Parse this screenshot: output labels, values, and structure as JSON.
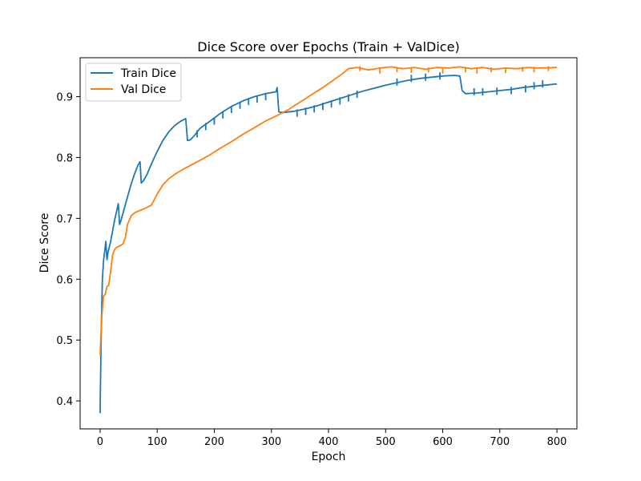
{
  "chart_data": {
    "type": "line",
    "title": "Dice Score over Epochs (Train + ValDice)",
    "xlabel": "Epoch",
    "ylabel": "Dice Score",
    "xlim": [
      -35,
      835
    ],
    "ylim": [
      0.354,
      0.964
    ],
    "xticks": [
      0,
      100,
      200,
      300,
      400,
      500,
      600,
      700,
      800
    ],
    "yticks": [
      0.4,
      0.5,
      0.6,
      0.7,
      0.8,
      0.9
    ],
    "ytick_labels": [
      "0.4",
      "0.5",
      "0.6",
      "0.7",
      "0.8",
      "0.9"
    ],
    "grid": false,
    "legend_position": "top-left",
    "series": [
      {
        "name": "Train Dice",
        "color": "#1f77b4",
        "points": [
          [
            0,
            0.38
          ],
          [
            2,
            0.52
          ],
          [
            4,
            0.6
          ],
          [
            6,
            0.63
          ],
          [
            8,
            0.645
          ],
          [
            10,
            0.662
          ],
          [
            12,
            0.632
          ],
          [
            14,
            0.645
          ],
          [
            18,
            0.66
          ],
          [
            22,
            0.68
          ],
          [
            26,
            0.7
          ],
          [
            30,
            0.716
          ],
          [
            32,
            0.724
          ],
          [
            34,
            0.69
          ],
          [
            36,
            0.695
          ],
          [
            42,
            0.715
          ],
          [
            48,
            0.735
          ],
          [
            54,
            0.755
          ],
          [
            60,
            0.772
          ],
          [
            66,
            0.787
          ],
          [
            70,
            0.793
          ],
          [
            72,
            0.758
          ],
          [
            76,
            0.762
          ],
          [
            82,
            0.772
          ],
          [
            90,
            0.79
          ],
          [
            100,
            0.81
          ],
          [
            110,
            0.828
          ],
          [
            120,
            0.842
          ],
          [
            130,
            0.852
          ],
          [
            140,
            0.859
          ],
          [
            150,
            0.864
          ],
          [
            153,
            0.828
          ],
          [
            158,
            0.829
          ],
          [
            165,
            0.836
          ],
          [
            175,
            0.848
          ],
          [
            190,
            0.858
          ],
          [
            210,
            0.872
          ],
          [
            230,
            0.884
          ],
          [
            250,
            0.893
          ],
          [
            270,
            0.9
          ],
          [
            290,
            0.905
          ],
          [
            308,
            0.908
          ],
          [
            310,
            0.915
          ],
          [
            313,
            0.875
          ],
          [
            320,
            0.874
          ],
          [
            340,
            0.876
          ],
          [
            360,
            0.88
          ],
          [
            380,
            0.885
          ],
          [
            400,
            0.891
          ],
          [
            420,
            0.897
          ],
          [
            440,
            0.903
          ],
          [
            460,
            0.909
          ],
          [
            480,
            0.914
          ],
          [
            500,
            0.919
          ],
          [
            520,
            0.923
          ],
          [
            540,
            0.927
          ],
          [
            560,
            0.93
          ],
          [
            580,
            0.932
          ],
          [
            600,
            0.934
          ],
          [
            620,
            0.935
          ],
          [
            630,
            0.934
          ],
          [
            634,
            0.91
          ],
          [
            640,
            0.905
          ],
          [
            660,
            0.906
          ],
          [
            680,
            0.908
          ],
          [
            700,
            0.91
          ],
          [
            720,
            0.912
          ],
          [
            740,
            0.915
          ],
          [
            760,
            0.917
          ],
          [
            780,
            0.919
          ],
          [
            800,
            0.921
          ]
        ],
        "spikes": [
          [
            170,
            0.845
          ],
          [
            185,
            0.857
          ],
          [
            200,
            0.866
          ],
          [
            215,
            0.876
          ],
          [
            230,
            0.885
          ],
          [
            245,
            0.892
          ],
          [
            260,
            0.898
          ],
          [
            275,
            0.902
          ],
          [
            290,
            0.906
          ],
          [
            345,
            0.879
          ],
          [
            360,
            0.882
          ],
          [
            375,
            0.886
          ],
          [
            390,
            0.89
          ],
          [
            405,
            0.894
          ],
          [
            420,
            0.899
          ],
          [
            435,
            0.904
          ],
          [
            450,
            0.91
          ],
          [
            520,
            0.93
          ],
          [
            545,
            0.936
          ],
          [
            570,
            0.938
          ],
          [
            595,
            0.94
          ],
          [
            655,
            0.914
          ],
          [
            670,
            0.914
          ],
          [
            695,
            0.915
          ],
          [
            720,
            0.916
          ],
          [
            745,
            0.919
          ],
          [
            760,
            0.924
          ],
          [
            775,
            0.927
          ]
        ]
      },
      {
        "name": "Val Dice",
        "color": "#ff7f0e",
        "points": [
          [
            0,
            0.475
          ],
          [
            3,
            0.54
          ],
          [
            6,
            0.572
          ],
          [
            9,
            0.575
          ],
          [
            12,
            0.588
          ],
          [
            15,
            0.59
          ],
          [
            18,
            0.61
          ],
          [
            22,
            0.64
          ],
          [
            25,
            0.648
          ],
          [
            28,
            0.652
          ],
          [
            35,
            0.655
          ],
          [
            40,
            0.658
          ],
          [
            44,
            0.668
          ],
          [
            48,
            0.69
          ],
          [
            55,
            0.705
          ],
          [
            62,
            0.71
          ],
          [
            70,
            0.713
          ],
          [
            80,
            0.717
          ],
          [
            90,
            0.722
          ],
          [
            100,
            0.74
          ],
          [
            110,
            0.755
          ],
          [
            120,
            0.765
          ],
          [
            135,
            0.775
          ],
          [
            150,
            0.783
          ],
          [
            170,
            0.793
          ],
          [
            190,
            0.803
          ],
          [
            210,
            0.815
          ],
          [
            230,
            0.826
          ],
          [
            250,
            0.838
          ],
          [
            270,
            0.849
          ],
          [
            290,
            0.86
          ],
          [
            310,
            0.869
          ],
          [
            330,
            0.879
          ],
          [
            350,
            0.891
          ],
          [
            370,
            0.903
          ],
          [
            390,
            0.915
          ],
          [
            410,
            0.928
          ],
          [
            425,
            0.938
          ],
          [
            435,
            0.946
          ],
          [
            450,
            0.948
          ],
          [
            470,
            0.944
          ],
          [
            490,
            0.947
          ],
          [
            510,
            0.949
          ],
          [
            530,
            0.946
          ],
          [
            550,
            0.948
          ],
          [
            570,
            0.945
          ],
          [
            590,
            0.948
          ],
          [
            610,
            0.947
          ],
          [
            630,
            0.949
          ],
          [
            650,
            0.946
          ],
          [
            670,
            0.948
          ],
          [
            690,
            0.945
          ],
          [
            710,
            0.947
          ],
          [
            730,
            0.946
          ],
          [
            750,
            0.948
          ],
          [
            770,
            0.947
          ],
          [
            800,
            0.948
          ]
        ],
        "dips": [
          [
            455,
            0.942
          ],
          [
            490,
            0.938
          ],
          [
            520,
            0.94
          ],
          [
            545,
            0.939
          ],
          [
            575,
            0.94
          ],
          [
            600,
            0.938
          ],
          [
            640,
            0.94
          ],
          [
            660,
            0.938
          ],
          [
            685,
            0.94
          ],
          [
            710,
            0.939
          ],
          [
            740,
            0.941
          ],
          [
            760,
            0.94
          ],
          [
            785,
            0.942
          ]
        ]
      }
    ]
  }
}
